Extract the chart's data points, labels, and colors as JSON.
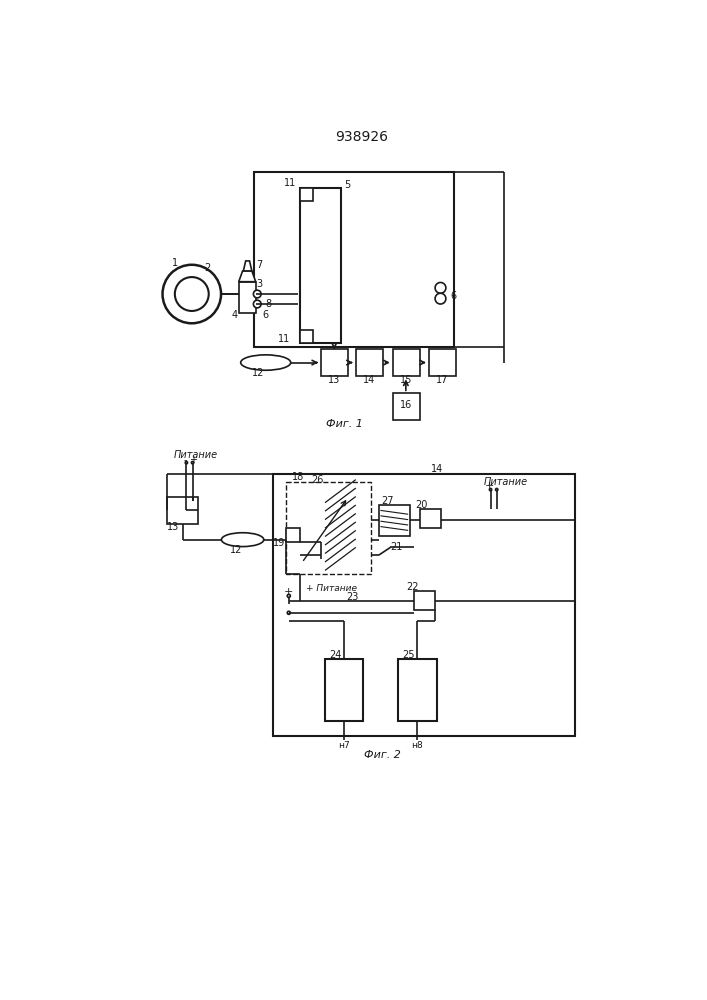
{
  "title": "938926",
  "fig1_label": "Фиг. 1",
  "fig2_label": "Фиг. 2",
  "pitanie": "Питание",
  "bg_color": "#ffffff",
  "lc": "#1a1a1a"
}
